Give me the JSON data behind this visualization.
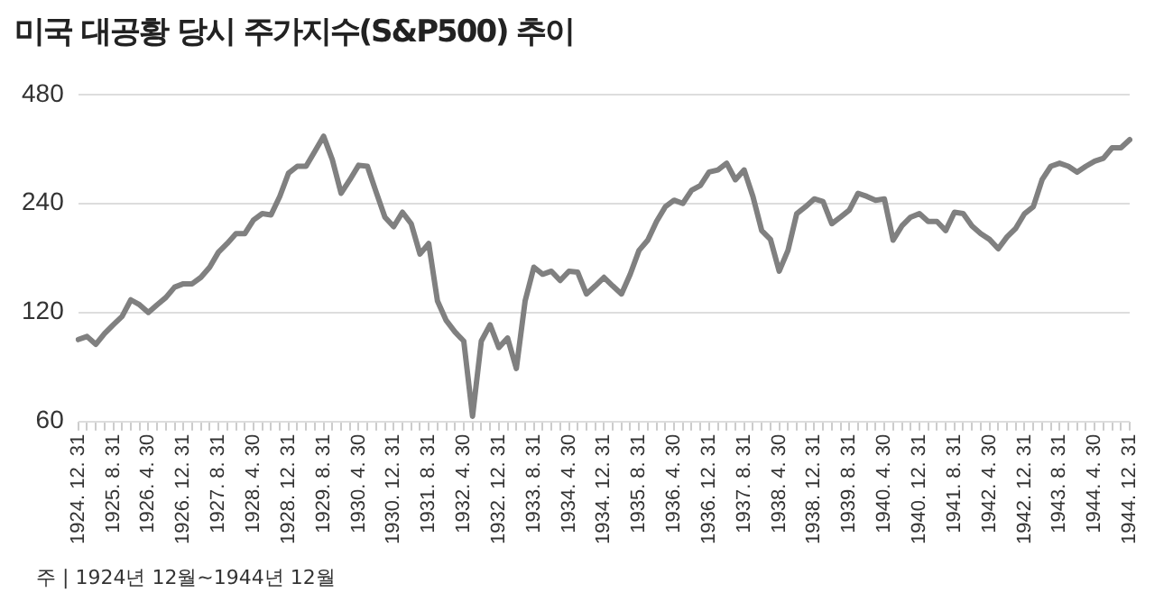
{
  "chart_data": {
    "type": "line",
    "title": "미국 대공황 당시 주가지수(S&P500) 추이",
    "categories": [
      "1924. 12. 31",
      null,
      null,
      null,
      "1925. 8. 31",
      null,
      null,
      null,
      "1926. 4. 30",
      null,
      null,
      null,
      "1926. 12. 31",
      null,
      null,
      null,
      "1927. 8. 31",
      null,
      null,
      null,
      "1928. 4. 30",
      null,
      null,
      null,
      "1928. 12. 31",
      null,
      null,
      null,
      "1929. 8. 31",
      null,
      null,
      null,
      "1930. 4. 30",
      null,
      null,
      null,
      "1930. 12. 31",
      null,
      null,
      null,
      "1931. 8. 31",
      null,
      null,
      null,
      "1932. 4. 30",
      null,
      null,
      null,
      "1932. 12. 31",
      null,
      null,
      null,
      "1933. 8. 31",
      null,
      null,
      null,
      "1934. 4. 30",
      null,
      null,
      null,
      "1934. 12. 31",
      null,
      null,
      null,
      "1935. 8. 31",
      null,
      null,
      null,
      "1936. 4. 30",
      null,
      null,
      null,
      "1936. 12. 31",
      null,
      null,
      null,
      "1937. 8. 31",
      null,
      null,
      null,
      "1938. 4. 30",
      null,
      null,
      null,
      "1938. 12. 31",
      null,
      null,
      null,
      "1939. 8. 31",
      null,
      null,
      null,
      "1940. 4. 30",
      null,
      null,
      null,
      "1940. 12. 31",
      null,
      null,
      null,
      "1941. 8. 31",
      null,
      null,
      null,
      "1942. 4. 30",
      null,
      null,
      null,
      "1942. 12. 31",
      null,
      null,
      null,
      "1943. 8. 31",
      null,
      null,
      null,
      "1944. 4. 30",
      null,
      null,
      null,
      "1944. 12. 31"
    ],
    "series": [
      {
        "color": "#808080",
        "values": [
          101,
          103,
          98,
          105,
          111,
          117,
          130,
          126,
          120,
          126,
          132,
          141,
          144,
          144,
          150,
          160,
          176,
          186,
          198,
          198,
          216,
          225,
          223,
          251,
          291,
          304,
          304,
          334,
          368,
          317,
          256,
          279,
          306,
          304,
          258,
          220,
          207,
          227,
          211,
          174,
          186,
          129,
          114,
          106,
          100,
          62,
          100,
          111,
          96,
          102,
          84,
          129,
          160,
          153,
          156,
          147,
          156,
          155,
          135,
          142,
          150,
          142,
          135,
          153,
          178,
          190,
          214,
          235,
          245,
          240,
          261,
          269,
          293,
          297,
          310,
          279,
          297,
          251,
          202,
          191,
          156,
          178,
          225,
          235,
          247,
          243,
          211,
          220,
          230,
          256,
          251,
          245,
          247,
          190,
          208,
          220,
          225,
          214,
          214,
          202,
          227,
          225,
          208,
          198,
          191,
          180,
          194,
          205,
          225,
          235,
          279,
          304,
          310,
          304,
          293,
          304,
          314,
          320,
          342,
          342,
          360
        ]
      }
    ],
    "log": true,
    "ylim": [
      60,
      480
    ],
    "yticks": [
      60,
      120,
      240,
      480
    ],
    "grid": "y",
    "legend": false,
    "annotations": [
      "주 | 1924년 12월~1944년 12월"
    ]
  }
}
